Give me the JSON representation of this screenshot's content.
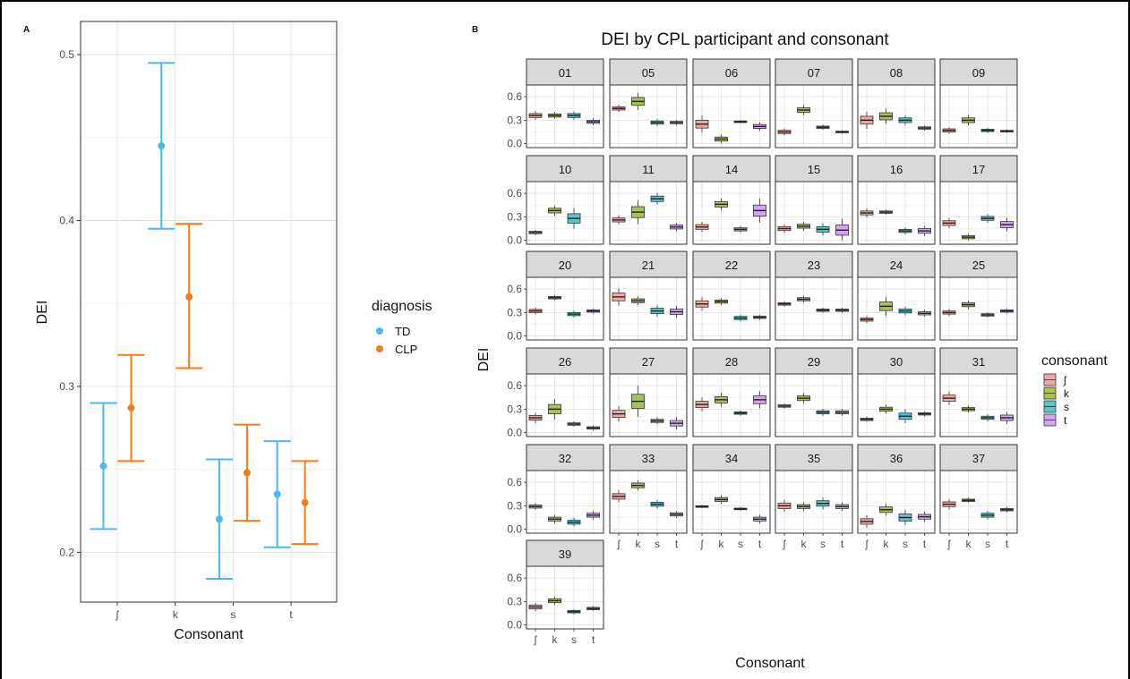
{
  "colors": {
    "TD": "#4DB8F0",
    "CLP": "#F07E1A",
    "cons_fill": [
      "#F4A7A2",
      "#A7C25A",
      "#55C6CC",
      "#D3A6EE"
    ]
  },
  "chart_data": [
    {
      "type": "scatter",
      "panel_label": "A",
      "title": "",
      "xlabel": "Consonant",
      "ylabel": "DEI",
      "categories": [
        "ʃ",
        "k",
        "s",
        "t"
      ],
      "yticks": [
        "0.2",
        "0.3",
        "0.4",
        "0.5"
      ],
      "ylim": [
        0.17,
        0.52
      ],
      "grid": true,
      "legend_title": "diagnosis",
      "legend_position": "right",
      "series": [
        {
          "name": "TD",
          "mean": [
            0.252,
            0.445,
            0.22,
            0.235
          ],
          "lower": [
            0.214,
            0.395,
            0.184,
            0.203
          ],
          "upper": [
            0.29,
            0.495,
            0.256,
            0.267
          ]
        },
        {
          "name": "CLP",
          "mean": [
            0.287,
            0.354,
            0.248,
            0.23
          ],
          "lower": [
            0.255,
            0.311,
            0.219,
            0.205
          ],
          "upper": [
            0.319,
            0.398,
            0.277,
            0.255
          ]
        }
      ]
    },
    {
      "type": "boxplot",
      "panel_label": "B",
      "title": "DEI by CPL participant and consonant",
      "xlabel": "Consonant",
      "ylabel": "DEI",
      "categories": [
        "ʃ",
        "k",
        "s",
        "t"
      ],
      "yticks": [
        "0.6",
        "0.3",
        "0.0"
      ],
      "ylim": [
        -0.05,
        0.75
      ],
      "legend_title": "consonant",
      "legend_position": "right",
      "facets": [
        {
          "id": "01",
          "med": [
            0.36,
            0.36,
            0.36,
            0.28
          ],
          "iqr": [
            0.05,
            0.04,
            0.05,
            0.04
          ]
        },
        {
          "id": "05",
          "med": [
            0.45,
            0.54,
            0.27,
            0.27
          ],
          "iqr": [
            0.04,
            0.1,
            0.04,
            0.03
          ]
        },
        {
          "id": "06",
          "med": [
            0.25,
            0.06,
            0.28,
            0.22
          ],
          "iqr": [
            0.1,
            0.05,
            0.02,
            0.05
          ]
        },
        {
          "id": "07",
          "med": [
            0.15,
            0.43,
            0.21,
            0.15
          ],
          "iqr": [
            0.04,
            0.06,
            0.03,
            0.02
          ]
        },
        {
          "id": "08",
          "med": [
            0.3,
            0.35,
            0.3,
            0.2
          ],
          "iqr": [
            0.1,
            0.09,
            0.06,
            0.03
          ]
        },
        {
          "id": "09",
          "med": [
            0.17,
            0.3,
            0.17,
            0.16
          ],
          "iqr": [
            0.04,
            0.06,
            0.03,
            0.02
          ]
        },
        {
          "id": "10",
          "med": [
            0.1,
            0.38,
            0.28,
            0.0
          ],
          "iqr": [
            0.03,
            0.06,
            0.12,
            0.0
          ]
        },
        {
          "id": "11",
          "med": [
            0.26,
            0.36,
            0.53,
            0.17
          ],
          "iqr": [
            0.05,
            0.14,
            0.07,
            0.05
          ]
        },
        {
          "id": "14",
          "med": [
            0.17,
            0.46,
            0.14,
            0.38
          ],
          "iqr": [
            0.06,
            0.07,
            0.04,
            0.14
          ]
        },
        {
          "id": "15",
          "med": [
            0.15,
            0.18,
            0.14,
            0.13
          ],
          "iqr": [
            0.05,
            0.05,
            0.07,
            0.13
          ]
        },
        {
          "id": "16",
          "med": [
            0.35,
            0.36,
            0.12,
            0.12
          ],
          "iqr": [
            0.05,
            0.03,
            0.04,
            0.06
          ]
        },
        {
          "id": "17",
          "med": [
            0.22,
            0.04,
            0.28,
            0.2
          ],
          "iqr": [
            0.06,
            0.04,
            0.05,
            0.08
          ]
        },
        {
          "id": "20",
          "med": [
            0.32,
            0.49,
            0.28,
            0.32
          ],
          "iqr": [
            0.04,
            0.03,
            0.04,
            0.03
          ]
        },
        {
          "id": "21",
          "med": [
            0.5,
            0.45,
            0.32,
            0.31
          ],
          "iqr": [
            0.1,
            0.05,
            0.07,
            0.07
          ]
        },
        {
          "id": "22",
          "med": [
            0.41,
            0.44,
            0.23,
            0.24
          ],
          "iqr": [
            0.08,
            0.04,
            0.04,
            0.03
          ]
        },
        {
          "id": "23",
          "med": [
            0.41,
            0.47,
            0.33,
            0.33
          ],
          "iqr": [
            0.03,
            0.04,
            0.03,
            0.03
          ]
        },
        {
          "id": "24",
          "med": [
            0.21,
            0.38,
            0.32,
            0.29
          ],
          "iqr": [
            0.04,
            0.11,
            0.05,
            0.04
          ]
        },
        {
          "id": "25",
          "med": [
            0.3,
            0.4,
            0.27,
            0.32
          ],
          "iqr": [
            0.04,
            0.05,
            0.03,
            0.03
          ]
        },
        {
          "id": "26",
          "med": [
            0.19,
            0.3,
            0.11,
            0.06
          ],
          "iqr": [
            0.06,
            0.12,
            0.03,
            0.03
          ]
        },
        {
          "id": "27",
          "med": [
            0.24,
            0.4,
            0.15,
            0.12
          ],
          "iqr": [
            0.09,
            0.18,
            0.04,
            0.07
          ]
        },
        {
          "id": "28",
          "med": [
            0.36,
            0.42,
            0.25,
            0.42
          ],
          "iqr": [
            0.08,
            0.08,
            0.03,
            0.1
          ]
        },
        {
          "id": "29",
          "med": [
            0.34,
            0.44,
            0.26,
            0.26
          ],
          "iqr": [
            0.03,
            0.06,
            0.04,
            0.04
          ]
        },
        {
          "id": "30",
          "med": [
            0.17,
            0.3,
            0.21,
            0.24
          ],
          "iqr": [
            0.03,
            0.05,
            0.08,
            0.03
          ]
        },
        {
          "id": "31",
          "med": [
            0.44,
            0.3,
            0.19,
            0.19
          ],
          "iqr": [
            0.08,
            0.04,
            0.04,
            0.07
          ]
        },
        {
          "id": "32",
          "med": [
            0.29,
            0.13,
            0.09,
            0.18
          ],
          "iqr": [
            0.04,
            0.05,
            0.05,
            0.05
          ]
        },
        {
          "id": "33",
          "med": [
            0.42,
            0.56,
            0.32,
            0.19
          ],
          "iqr": [
            0.07,
            0.06,
            0.05,
            0.04
          ]
        },
        {
          "id": "34",
          "med": [
            0.29,
            0.38,
            0.26,
            0.13
          ],
          "iqr": [
            0.02,
            0.05,
            0.02,
            0.05
          ]
        },
        {
          "id": "35",
          "med": [
            0.3,
            0.29,
            0.33,
            0.29
          ],
          "iqr": [
            0.07,
            0.05,
            0.07,
            0.05
          ]
        },
        {
          "id": "36",
          "med": [
            0.1,
            0.25,
            0.15,
            0.16
          ],
          "iqr": [
            0.07,
            0.07,
            0.09,
            0.06
          ]
        },
        {
          "id": "37",
          "med": [
            0.32,
            0.37,
            0.18,
            0.25
          ],
          "iqr": [
            0.06,
            0.03,
            0.05,
            0.03
          ]
        },
        {
          "id": "39",
          "med": [
            0.23,
            0.31,
            0.17,
            0.21
          ],
          "iqr": [
            0.05,
            0.05,
            0.03,
            0.03
          ]
        }
      ]
    }
  ]
}
